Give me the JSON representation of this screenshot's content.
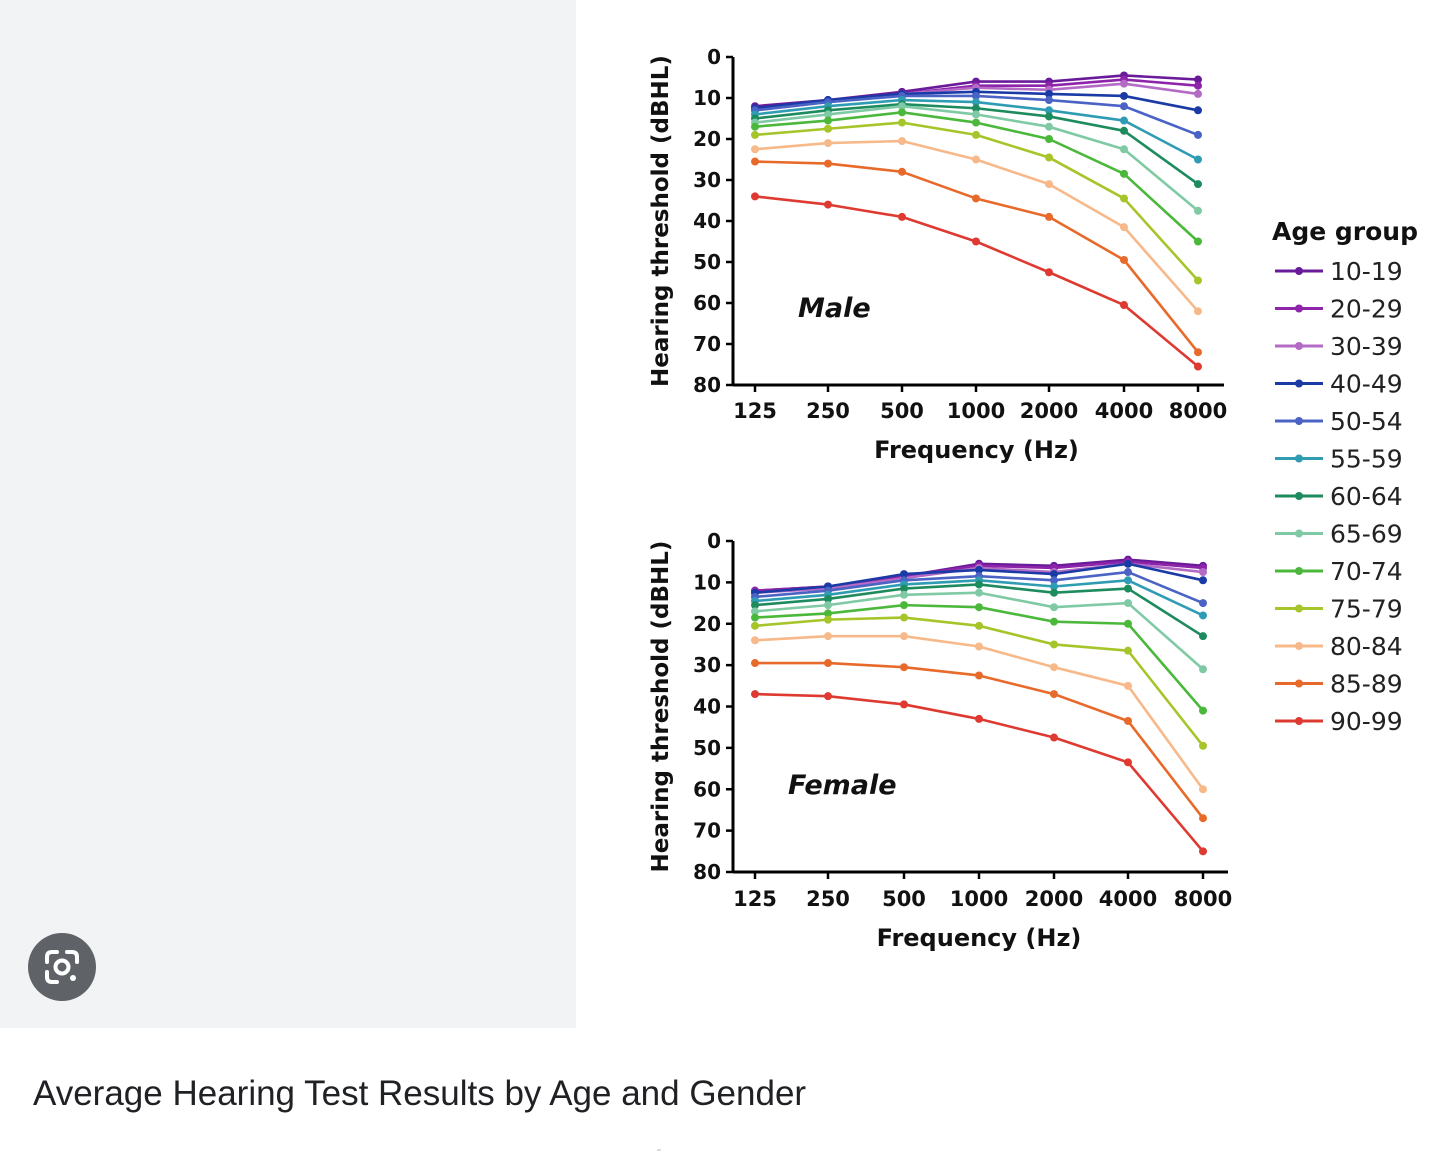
{
  "caption": "Average Hearing Test Results by Age and Gender",
  "lens": {
    "icon": "google-lens-icon",
    "color": "#5f6368"
  },
  "legend": {
    "title": "Age group",
    "entries": [
      {
        "label": "10-19",
        "color": "#6a1b9a"
      },
      {
        "label": "20-29",
        "color": "#8e24aa"
      },
      {
        "label": "30-39",
        "color": "#b36bc6"
      },
      {
        "label": "40-49",
        "color": "#1a3aa6"
      },
      {
        "label": "50-54",
        "color": "#4a63c4"
      },
      {
        "label": "55-59",
        "color": "#2f9cb4"
      },
      {
        "label": "60-64",
        "color": "#1e8b5e"
      },
      {
        "label": "65-69",
        "color": "#7fcaa5"
      },
      {
        "label": "70-74",
        "color": "#4bb83c"
      },
      {
        "label": "75-79",
        "color": "#a6c52a"
      },
      {
        "label": "80-84",
        "color": "#f7b98a"
      },
      {
        "label": "85-89",
        "color": "#e86a2b"
      },
      {
        "label": "90-99",
        "color": "#de3a32"
      }
    ]
  },
  "chart_data": [
    {
      "type": "line",
      "annotation": "Male",
      "xlabel": "Frequency (Hz)",
      "ylabel": "Hearing threshold (dBHL)",
      "categories": [
        "125",
        "250",
        "500",
        "1000",
        "2000",
        "4000",
        "8000"
      ],
      "yticks": [
        "0",
        "10",
        "20",
        "30",
        "40",
        "50",
        "60",
        "70",
        "80"
      ],
      "ylim": [
        0,
        80
      ],
      "y_inverted": true,
      "series": [
        {
          "name": "10-19",
          "values": [
            12,
            10.5,
            8.5,
            6,
            6,
            4.5,
            5.5
          ]
        },
        {
          "name": "20-29",
          "values": [
            12.5,
            11,
            9,
            7,
            7,
            5.5,
            7
          ]
        },
        {
          "name": "30-39",
          "values": [
            13,
            11,
            9,
            7.5,
            8,
            6.5,
            9
          ]
        },
        {
          "name": "40-49",
          "values": [
            12.5,
            10.5,
            9,
            8.5,
            9,
            9.5,
            13
          ]
        },
        {
          "name": "50-54",
          "values": [
            13,
            11,
            9.5,
            9.5,
            10.5,
            12,
            19
          ]
        },
        {
          "name": "55-59",
          "values": [
            14,
            12,
            10.5,
            11,
            13,
            15.5,
            25
          ]
        },
        {
          "name": "60-64",
          "values": [
            15,
            13,
            11.5,
            12.5,
            14.5,
            18,
            31
          ]
        },
        {
          "name": "65-69",
          "values": [
            16,
            14,
            12,
            14,
            17,
            22.5,
            37.5
          ]
        },
        {
          "name": "70-74",
          "values": [
            17,
            15.5,
            13.5,
            16,
            20,
            28.5,
            45
          ]
        },
        {
          "name": "75-79",
          "values": [
            19,
            17.5,
            16,
            19,
            24.5,
            34.5,
            54.5
          ]
        },
        {
          "name": "80-84",
          "values": [
            22.5,
            21,
            20.5,
            25,
            31,
            41.5,
            62
          ]
        },
        {
          "name": "85-89",
          "values": [
            25.5,
            26,
            28,
            34.5,
            39,
            49.5,
            72
          ]
        },
        {
          "name": "90-99",
          "values": [
            34,
            36,
            39,
            45,
            52.5,
            60.5,
            75.5
          ]
        }
      ]
    },
    {
      "type": "line",
      "annotation": "Female",
      "xlabel": "Frequency (Hz)",
      "ylabel": "Hearing threshold (dBHL)",
      "categories": [
        "125",
        "250",
        "500",
        "1000",
        "2000",
        "4000",
        "8000"
      ],
      "yticks": [
        "0",
        "10",
        "20",
        "30",
        "40",
        "50",
        "60",
        "70",
        "80"
      ],
      "ylim": [
        0,
        80
      ],
      "y_inverted": true,
      "series": [
        {
          "name": "10-19",
          "values": [
            12,
            11,
            8.5,
            5.5,
            6,
            4.5,
            6
          ]
        },
        {
          "name": "20-29",
          "values": [
            12,
            11,
            8.5,
            6,
            6.5,
            5,
            6.5
          ]
        },
        {
          "name": "30-39",
          "values": [
            12.5,
            11.5,
            9,
            6.5,
            7.5,
            5.5,
            7.5
          ]
        },
        {
          "name": "40-49",
          "values": [
            12.5,
            11,
            8,
            7,
            8,
            5.5,
            9.5
          ]
        },
        {
          "name": "50-54",
          "values": [
            13.5,
            12,
            9.5,
            8.5,
            9.5,
            7.5,
            15
          ]
        },
        {
          "name": "55-59",
          "values": [
            14.5,
            13,
            10.5,
            9.5,
            11,
            9.5,
            18
          ]
        },
        {
          "name": "60-64",
          "values": [
            15.5,
            14,
            11.5,
            10.5,
            12.5,
            11.5,
            23
          ]
        },
        {
          "name": "65-69",
          "values": [
            17,
            15.5,
            13,
            12.5,
            16,
            15,
            31
          ]
        },
        {
          "name": "70-74",
          "values": [
            18.5,
            17.5,
            15.5,
            16,
            19.5,
            20,
            41
          ]
        },
        {
          "name": "75-79",
          "values": [
            20.5,
            19,
            18.5,
            20.5,
            25,
            26.5,
            49.5
          ]
        },
        {
          "name": "80-84",
          "values": [
            24,
            23,
            23,
            25.5,
            30.5,
            35,
            60
          ]
        },
        {
          "name": "85-89",
          "values": [
            29.5,
            29.5,
            30.5,
            32.5,
            37,
            43.5,
            67
          ]
        },
        {
          "name": "90-99",
          "values": [
            37,
            37.5,
            39.5,
            43,
            47.5,
            53.5,
            75
          ]
        }
      ]
    }
  ]
}
